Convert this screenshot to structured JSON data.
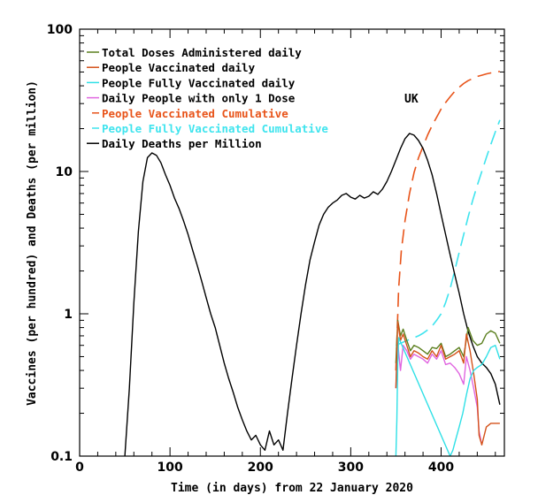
{
  "chart_data": {
    "type": "line",
    "title": "",
    "annotation": "UK",
    "xlabel": "Time (in days) from 22 January 2020",
    "ylabel": "Vaccines (per hundred) and Deaths (per million)",
    "xlim": [
      0,
      470
    ],
    "ylim": [
      0.1,
      100
    ],
    "yscale": "log",
    "xticks": [
      0,
      100,
      200,
      300,
      400
    ],
    "xtick_labels": [
      "0",
      "100",
      "200",
      "300",
      "400"
    ],
    "yticks": [
      0.1,
      1,
      10,
      100
    ],
    "ytick_labels": [
      "0.1",
      "1",
      "10",
      "100"
    ],
    "legend_position": "top-left",
    "series": [
      {
        "name": "Total Doses Administered daily",
        "color": "#5b7f1e",
        "style": "solid",
        "x": [
          350,
          352,
          355,
          358,
          362,
          366,
          370,
          375,
          380,
          385,
          390,
          395,
          400,
          405,
          410,
          415,
          420,
          425,
          430,
          435,
          440,
          445,
          450,
          455,
          460,
          465
        ],
        "y": [
          0.45,
          0.9,
          0.7,
          0.78,
          0.65,
          0.55,
          0.6,
          0.58,
          0.55,
          0.52,
          0.58,
          0.57,
          0.62,
          0.5,
          0.52,
          0.55,
          0.58,
          0.5,
          0.8,
          0.65,
          0.6,
          0.62,
          0.72,
          0.76,
          0.73,
          0.62
        ]
      },
      {
        "name": "People Vaccinated daily",
        "color": "#d4521a",
        "style": "solid",
        "x": [
          350,
          352,
          355,
          358,
          362,
          366,
          370,
          375,
          380,
          385,
          390,
          395,
          400,
          405,
          410,
          415,
          420,
          425,
          428,
          432,
          436,
          440,
          442,
          445,
          450,
          455,
          460,
          465
        ],
        "y": [
          0.3,
          0.88,
          0.65,
          0.72,
          0.6,
          0.5,
          0.55,
          0.53,
          0.5,
          0.48,
          0.55,
          0.5,
          0.6,
          0.48,
          0.5,
          0.52,
          0.55,
          0.45,
          0.72,
          0.55,
          0.38,
          0.25,
          0.14,
          0.12,
          0.16,
          0.17,
          0.17,
          0.17
        ]
      },
      {
        "name": "People Fully Vaccinated daily",
        "color": "#2fe0e6",
        "style": "solid",
        "x": [
          350,
          351,
          352,
          353,
          410,
          413,
          416,
          420,
          424,
          428,
          432,
          436,
          440,
          445,
          450,
          455,
          460,
          465
        ],
        "y": [
          0.1,
          0.18,
          0.45,
          0.68,
          0.1,
          0.11,
          0.13,
          0.16,
          0.2,
          0.27,
          0.35,
          0.4,
          0.42,
          0.44,
          0.5,
          0.58,
          0.6,
          0.48
        ]
      },
      {
        "name": "Daily People with only 1 Dose",
        "color": "#e066e0",
        "style": "solid",
        "x": [
          350,
          352,
          355,
          358,
          362,
          366,
          370,
          375,
          380,
          385,
          390,
          395,
          400,
          405,
          410,
          415,
          420,
          425,
          428,
          432,
          436,
          440,
          442,
          445
        ],
        "y": [
          0.3,
          0.62,
          0.4,
          0.6,
          0.55,
          0.48,
          0.52,
          0.5,
          0.48,
          0.45,
          0.52,
          0.48,
          0.55,
          0.44,
          0.45,
          0.42,
          0.38,
          0.32,
          0.5,
          0.4,
          0.3,
          0.22,
          0.15,
          0.12
        ]
      },
      {
        "name": "People Vaccinated Cumulative",
        "color": "#e8541a",
        "style": "dashed",
        "x": [
          350,
          353,
          356,
          360,
          365,
          370,
          375,
          380,
          385,
          390,
          395,
          400,
          405,
          410,
          415,
          420,
          425,
          430,
          435,
          440,
          445,
          450,
          455,
          460,
          465
        ],
        "y": [
          0.4,
          1.5,
          2.8,
          4.5,
          7.0,
          9.8,
          12.5,
          15.0,
          18.0,
          21.0,
          24.0,
          27.5,
          30.5,
          33.5,
          36.5,
          39.0,
          41.5,
          43.5,
          45.0,
          46.5,
          47.5,
          48.5,
          49.3,
          50.0,
          50.5
        ]
      },
      {
        "name": "People Fully Vaccinated Cumulative",
        "color": "#3fe4ee",
        "style": "dashed",
        "x": [
          350,
          355,
          360,
          365,
          370,
          375,
          380,
          385,
          390,
          395,
          400,
          405,
          410,
          415,
          420,
          425,
          430,
          435,
          440,
          445,
          450,
          455,
          460,
          465
        ],
        "y": [
          0.6,
          0.62,
          0.64,
          0.66,
          0.68,
          0.7,
          0.73,
          0.77,
          0.82,
          0.9,
          1.0,
          1.2,
          1.5,
          2.0,
          2.7,
          3.6,
          4.8,
          6.3,
          8.0,
          10.0,
          12.5,
          15.5,
          19.0,
          23.0
        ]
      },
      {
        "name": "Daily Deaths per Million",
        "color": "#000000",
        "style": "solid",
        "x": [
          50,
          55,
          60,
          65,
          70,
          75,
          80,
          85,
          90,
          95,
          100,
          105,
          110,
          115,
          120,
          125,
          130,
          135,
          140,
          145,
          150,
          155,
          160,
          165,
          170,
          175,
          180,
          185,
          190,
          195,
          200,
          205,
          210,
          215,
          220,
          225,
          230,
          235,
          240,
          245,
          250,
          255,
          260,
          265,
          270,
          275,
          280,
          285,
          290,
          295,
          300,
          305,
          310,
          315,
          320,
          325,
          330,
          335,
          340,
          345,
          350,
          355,
          360,
          365,
          370,
          375,
          380,
          385,
          390,
          395,
          400,
          405,
          410,
          415,
          420,
          425,
          430,
          435,
          440,
          445,
          450,
          455,
          460,
          465
        ],
        "y": [
          0.1,
          0.3,
          1.2,
          3.8,
          8.5,
          12.5,
          13.5,
          13.0,
          11.5,
          9.5,
          8.0,
          6.5,
          5.5,
          4.5,
          3.6,
          2.8,
          2.2,
          1.7,
          1.3,
          1.0,
          0.8,
          0.6,
          0.45,
          0.35,
          0.28,
          0.22,
          0.18,
          0.15,
          0.13,
          0.14,
          0.12,
          0.11,
          0.15,
          0.12,
          0.13,
          0.11,
          0.2,
          0.35,
          0.6,
          1.0,
          1.6,
          2.4,
          3.2,
          4.2,
          5.0,
          5.6,
          6.0,
          6.3,
          6.8,
          7.0,
          6.6,
          6.4,
          6.8,
          6.5,
          6.7,
          7.2,
          6.9,
          7.5,
          8.5,
          10.0,
          12.0,
          14.5,
          17.0,
          18.5,
          18.0,
          16.5,
          14.5,
          12.0,
          9.5,
          7.0,
          5.0,
          3.6,
          2.6,
          1.9,
          1.4,
          1.0,
          0.75,
          0.6,
          0.5,
          0.45,
          0.42,
          0.38,
          0.32,
          0.23
        ]
      }
    ]
  }
}
